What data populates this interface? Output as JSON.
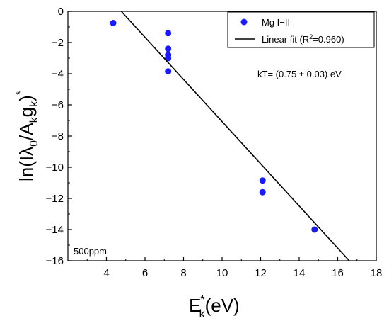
{
  "chart_data": {
    "type": "scatter",
    "xlim": [
      2,
      18
    ],
    "ylim": [
      -16,
      0
    ],
    "x_ticks": [
      4,
      6,
      8,
      10,
      12,
      14,
      16,
      18
    ],
    "y_ticks": [
      0,
      -2,
      -4,
      -6,
      -8,
      -10,
      -12,
      -14,
      -16
    ],
    "x_tick_labels": [
      "4",
      "6",
      "8",
      "10",
      "12",
      "14",
      "16",
      "18"
    ],
    "y_tick_labels": [
      "0",
      "−2",
      "−4",
      "−6",
      "−8",
      "−10",
      "−12",
      "−14",
      "−16"
    ],
    "xlabel": {
      "main": "E",
      "sub": "k",
      "sup": "*",
      "rest": "(eV)"
    },
    "ylabel": {
      "p1": "ln(Iλ",
      "sub1": "0",
      "p2": "/A",
      "sub2": "k",
      "p3": "g",
      "sub3": "k",
      "p4": ")",
      "sup": "*"
    },
    "series": [
      {
        "name": "Mg I−II",
        "kind": "scatter",
        "color": "#1a1aff",
        "x": [
          4.35,
          7.2,
          7.2,
          7.2,
          7.2,
          7.2,
          12.1,
          12.1,
          14.8
        ],
        "y": [
          -0.75,
          -1.4,
          -2.4,
          -2.8,
          -3.0,
          -3.85,
          -10.85,
          -11.6,
          -14.0
        ]
      },
      {
        "name": "Linear fit (R²=0.960)",
        "kind": "line",
        "color": "#000000",
        "x": [
          4.77,
          16.6
        ],
        "y": [
          0,
          -16
        ]
      }
    ],
    "legend": {
      "position": "top-right",
      "label1": "Mg I−II",
      "label2_prefix": "Linear fit (R",
      "label2_sup": "2",
      "label2_suffix": "=0.960)"
    },
    "annotations": {
      "kt": "kT= (0.75 ± 0.03) eV",
      "sample": "500ppm"
    }
  }
}
